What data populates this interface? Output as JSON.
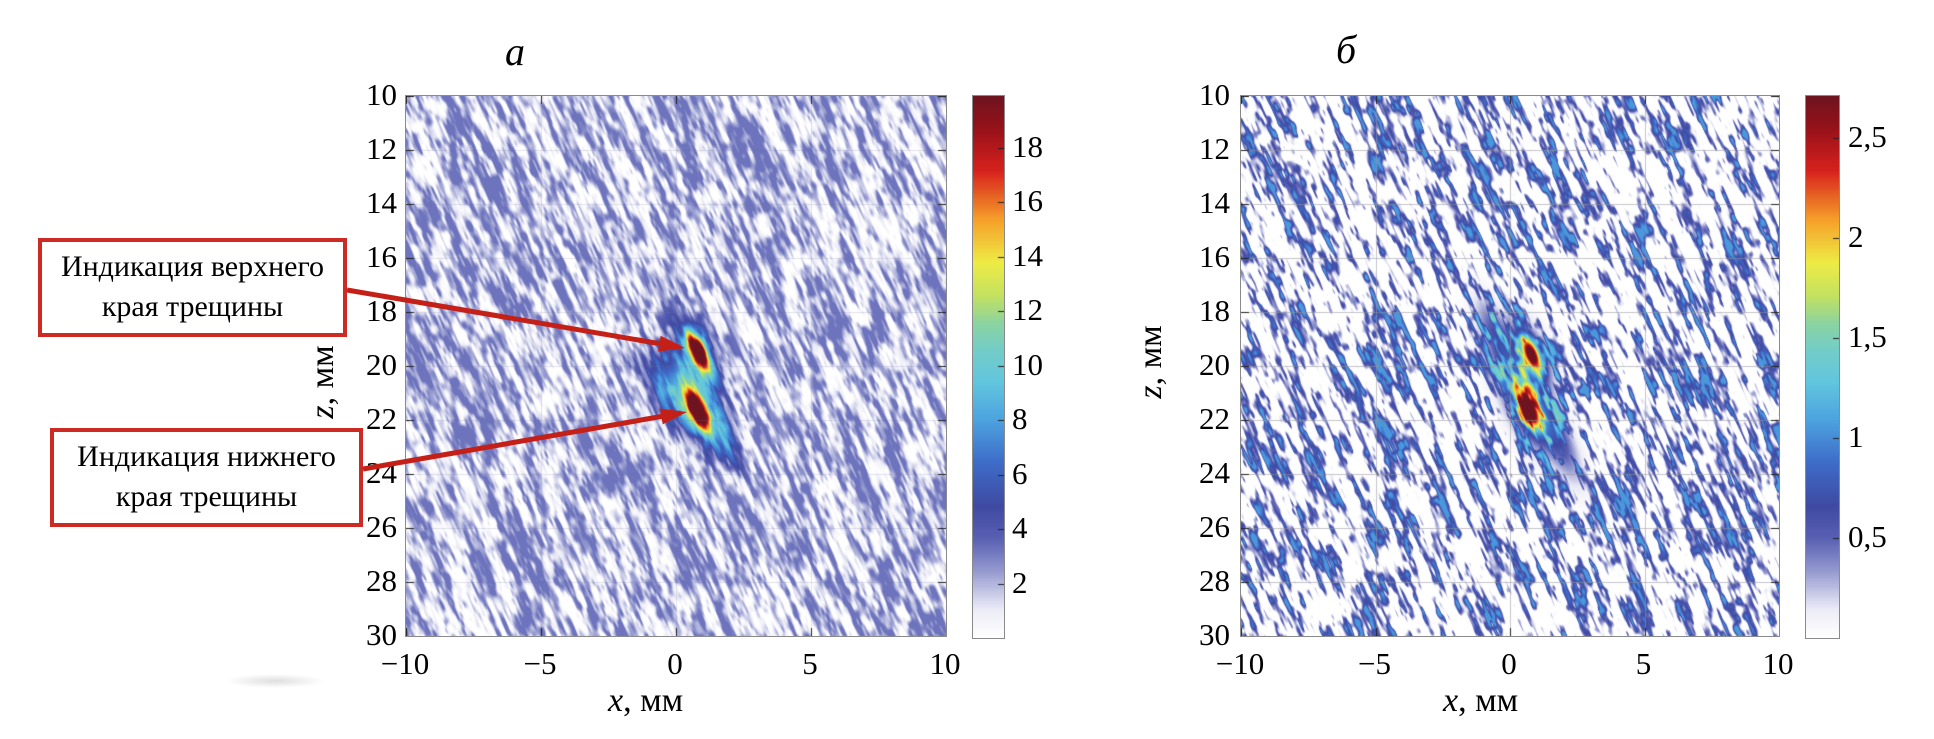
{
  "figure": {
    "x_axis": {
      "var": "x",
      "unit": ", мм"
    },
    "z_axis": {
      "var": "z",
      "unit": ", мм"
    },
    "annotations": [
      {
        "line1": "Индикация верхнего",
        "line2": "края трещины"
      },
      {
        "line1": "Индикация нижнего",
        "line2": "края трещины"
      }
    ],
    "colors": {
      "annotation_red": "#ce2a24",
      "arrow_red": "#c42018",
      "frame_gray": "#8a8a8a",
      "grid_gray": "#c8c8d0"
    }
  },
  "chart_data": [
    {
      "type": "heatmap",
      "panel": "a",
      "title": "а",
      "xlabel": "x, мм",
      "ylabel": "z, мм",
      "x_range": [
        -10,
        10
      ],
      "z_range": [
        10,
        30
      ],
      "x_ticks": [
        -10,
        -5,
        0,
        5,
        10
      ],
      "x_tick_labels": [
        "−10",
        "−5",
        "0",
        "5",
        "10"
      ],
      "z_ticks": [
        10,
        12,
        14,
        16,
        18,
        20,
        22,
        24,
        26,
        28,
        30
      ],
      "z_tick_labels": [
        "10",
        "12",
        "14",
        "16",
        "18",
        "20",
        "22",
        "24",
        "26",
        "28",
        "30"
      ],
      "colorbar": {
        "range": [
          0,
          19.9
        ],
        "ticks": [
          2,
          4,
          6,
          8,
          10,
          12,
          14,
          16,
          18
        ],
        "tick_labels": [
          "2",
          "4",
          "6",
          "8",
          "10",
          "12",
          "14",
          "16",
          "18"
        ]
      },
      "colormap": "white-blue-cyan-green-yellow-orange-red-maroon (jet-like, white at zero)",
      "grid": true,
      "background_speckle_range": [
        0,
        3.2
      ],
      "hotspots": [
        {
          "x_mm": 0.8,
          "z_mm": 19.45,
          "peak": 19.0,
          "meaning": "индикация верхнего края трещины"
        },
        {
          "x_mm": 0.75,
          "z_mm": 21.6,
          "peak": 19.5,
          "meaning": "индикация нижнего края трещины"
        }
      ]
    },
    {
      "type": "heatmap",
      "panel": "b",
      "title": "б",
      "xlabel": "x, мм",
      "ylabel": "z, мм",
      "x_range": [
        -10,
        10
      ],
      "z_range": [
        10,
        30
      ],
      "x_ticks": [
        -10,
        -5,
        0,
        5,
        10
      ],
      "x_tick_labels": [
        "−10",
        "−5",
        "0",
        "5",
        "10"
      ],
      "z_ticks": [
        10,
        12,
        14,
        16,
        18,
        20,
        22,
        24,
        26,
        28,
        30
      ],
      "z_tick_labels": [
        "10",
        "12",
        "14",
        "16",
        "18",
        "20",
        "22",
        "24",
        "26",
        "28",
        "30"
      ],
      "colorbar": {
        "range": [
          0,
          2.71
        ],
        "ticks": [
          0.5,
          1,
          1.5,
          2,
          2.5
        ],
        "tick_labels": [
          "0,5",
          "1",
          "1,5",
          "2",
          "2,5"
        ]
      },
      "colormap": "white-blue-cyan-green-yellow-orange-red-maroon (jet-like, white at zero)",
      "grid": true,
      "background_speckle_range": [
        0,
        1.05
      ],
      "hotspots": [
        {
          "x_mm": 0.78,
          "z_mm": 19.55,
          "peak": 2.55,
          "meaning": "индикация верхнего края трещины"
        },
        {
          "x_mm": 0.7,
          "z_mm": 21.6,
          "peak": 2.5,
          "meaning": "индикация нижнего края трещины"
        }
      ]
    }
  ]
}
